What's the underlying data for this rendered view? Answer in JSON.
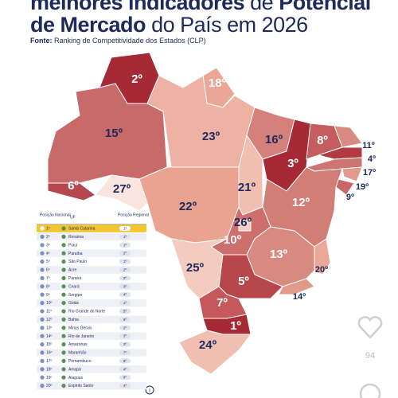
{
  "header": {
    "title_line1": [
      "melhores indicadores",
      "de",
      "Potencial"
    ],
    "title_line2": [
      "de Mercado",
      "do País em 2026"
    ],
    "source_label": "Fonte:",
    "source_text": "Ranking de Competitividade dos Estados (CLP)"
  },
  "map": {
    "labels": [
      "2º",
      "18º",
      "15º",
      "23º",
      "16º",
      "8º",
      "11º",
      "4º",
      "17º",
      "19º",
      "9º",
      "3º",
      "6º",
      "27º",
      "21º",
      "22º",
      "12º",
      "26º",
      "10º",
      "13º",
      "20º",
      "25º",
      "5º",
      "14º",
      "7º",
      "1º",
      "24º"
    ]
  },
  "table": {
    "headers": [
      "Posição Nacional",
      "UF",
      "Posição Regional"
    ],
    "rows": [
      [
        "1º",
        "Santa Catarina",
        "1º"
      ],
      [
        "2º",
        "Roraima",
        "1º"
      ],
      [
        "3º",
        "Piauí",
        "1º"
      ],
      [
        "4º",
        "Paraíba",
        "2º"
      ],
      [
        "5º",
        "São Paulo",
        "1º"
      ],
      [
        "6º",
        "Acre",
        "2º"
      ],
      [
        "7º",
        "Paraná",
        "2º"
      ],
      [
        "8º",
        "Ceará",
        "3º"
      ],
      [
        "9º",
        "Sergipe",
        "4º"
      ],
      [
        "10º",
        "Goiás",
        "1º"
      ],
      [
        "11º",
        "Rio Grande do Norte",
        "5º"
      ],
      [
        "12º",
        "Bahia",
        "6º"
      ],
      [
        "13º",
        "Minas Gerais",
        "2º"
      ],
      [
        "14º",
        "Rio de Janeiro",
        "3º"
      ],
      [
        "15º",
        "Amazonas",
        "3º"
      ],
      [
        "16º",
        "Maranhão",
        "7º"
      ],
      [
        "17º",
        "Pernambuco",
        "8º"
      ],
      [
        "18º",
        "Amapá",
        "4º"
      ],
      [
        "19º",
        "Alagoas",
        "9º"
      ],
      [
        "20º",
        "Espírito Santo",
        "4º"
      ]
    ]
  },
  "social": {
    "likes": "94"
  }
}
